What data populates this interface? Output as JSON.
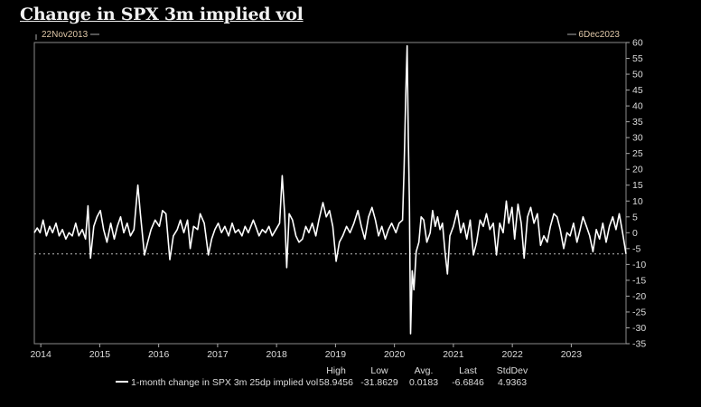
{
  "chart_data": {
    "type": "line",
    "title": "Change in SPX 3m implied vol",
    "start_label": "22Nov2013",
    "end_label": "6Dec2023",
    "ylim": [
      -35,
      60
    ],
    "y_ticks": [
      60,
      55,
      50,
      45,
      40,
      35,
      30,
      25,
      20,
      15,
      10,
      5,
      0,
      -5,
      -10,
      -15,
      -20,
      -25,
      -30,
      -35
    ],
    "x_ticks": [
      "2014",
      "2015",
      "2016",
      "2017",
      "2018",
      "2019",
      "2020",
      "2021",
      "2022",
      "2023"
    ],
    "y_axis_side": "right",
    "grid": false,
    "reference_line": {
      "value": -6.6846,
      "style": "dotted"
    },
    "series": [
      {
        "name": "1-month change in SPX 3m 25dp implied vol",
        "color": "#ffffff",
        "points": [
          [
            "2013-11-22",
            0
          ],
          [
            "2013-12-10",
            1.5
          ],
          [
            "2013-12-28",
            0
          ],
          [
            "2014-01-15",
            4
          ],
          [
            "2014-02-05",
            -1
          ],
          [
            "2014-02-25",
            2
          ],
          [
            "2014-03-15",
            0
          ],
          [
            "2014-04-05",
            3
          ],
          [
            "2014-04-25",
            -1
          ],
          [
            "2014-05-15",
            1
          ],
          [
            "2014-06-05",
            -2
          ],
          [
            "2014-06-25",
            0
          ],
          [
            "2014-07-15",
            -1
          ],
          [
            "2014-08-05",
            3
          ],
          [
            "2014-08-25",
            -1
          ],
          [
            "2014-09-15",
            1
          ],
          [
            "2014-10-05",
            -2
          ],
          [
            "2014-10-20",
            8.5
          ],
          [
            "2014-11-05",
            -8
          ],
          [
            "2014-11-25",
            2
          ],
          [
            "2014-12-15",
            5
          ],
          [
            "2015-01-05",
            7
          ],
          [
            "2015-01-25",
            1
          ],
          [
            "2015-02-15",
            -3
          ],
          [
            "2015-03-10",
            3
          ],
          [
            "2015-04-01",
            -2
          ],
          [
            "2015-04-20",
            2
          ],
          [
            "2015-05-10",
            5
          ],
          [
            "2015-05-30",
            0
          ],
          [
            "2015-06-20",
            3
          ],
          [
            "2015-07-10",
            -1
          ],
          [
            "2015-08-01",
            1
          ],
          [
            "2015-08-25",
            15
          ],
          [
            "2015-09-10",
            6
          ],
          [
            "2015-10-05",
            -7
          ],
          [
            "2015-10-25",
            -3
          ],
          [
            "2015-11-15",
            1
          ],
          [
            "2015-12-10",
            4
          ],
          [
            "2016-01-05",
            2
          ],
          [
            "2016-01-25",
            7
          ],
          [
            "2016-02-15",
            6
          ],
          [
            "2016-03-10",
            -8.5
          ],
          [
            "2016-04-01",
            -1
          ],
          [
            "2016-04-25",
            1
          ],
          [
            "2016-05-15",
            4
          ],
          [
            "2016-06-05",
            0
          ],
          [
            "2016-06-28",
            4
          ],
          [
            "2016-07-15",
            -5
          ],
          [
            "2016-08-05",
            2
          ],
          [
            "2016-08-30",
            1
          ],
          [
            "2016-09-15",
            6
          ],
          [
            "2016-10-10",
            3
          ],
          [
            "2016-11-05",
            -7
          ],
          [
            "2016-11-25",
            -2
          ],
          [
            "2016-12-15",
            1
          ],
          [
            "2017-01-05",
            3
          ],
          [
            "2017-01-25",
            0
          ],
          [
            "2017-02-15",
            2
          ],
          [
            "2017-03-10",
            -1
          ],
          [
            "2017-04-01",
            3
          ],
          [
            "2017-04-20",
            0
          ],
          [
            "2017-05-10",
            1
          ],
          [
            "2017-06-01",
            -1
          ],
          [
            "2017-06-20",
            2
          ],
          [
            "2017-07-10",
            0
          ],
          [
            "2017-08-10",
            4
          ],
          [
            "2017-08-25",
            2
          ],
          [
            "2017-09-15",
            -1
          ],
          [
            "2017-10-05",
            1
          ],
          [
            "2017-10-25",
            0
          ],
          [
            "2017-11-15",
            2
          ],
          [
            "2017-12-05",
            -1
          ],
          [
            "2017-12-28",
            1
          ],
          [
            "2018-01-20",
            3
          ],
          [
            "2018-02-05",
            18
          ],
          [
            "2018-02-20",
            6
          ],
          [
            "2018-03-05",
            -11
          ],
          [
            "2018-03-20",
            6
          ],
          [
            "2018-04-10",
            4
          ],
          [
            "2018-05-01",
            -1
          ],
          [
            "2018-05-20",
            -3
          ],
          [
            "2018-06-10",
            -2
          ],
          [
            "2018-07-01",
            2
          ],
          [
            "2018-07-20",
            0
          ],
          [
            "2018-08-10",
            3
          ],
          [
            "2018-09-01",
            -1
          ],
          [
            "2018-09-20",
            4
          ],
          [
            "2018-10-15",
            9.5
          ],
          [
            "2018-11-05",
            5
          ],
          [
            "2018-11-25",
            7
          ],
          [
            "2018-12-15",
            2
          ],
          [
            "2019-01-05",
            -9
          ],
          [
            "2019-01-25",
            -3
          ],
          [
            "2019-02-15",
            -1
          ],
          [
            "2019-03-10",
            2
          ],
          [
            "2019-04-01",
            0
          ],
          [
            "2019-04-25",
            3
          ],
          [
            "2019-05-20",
            7
          ],
          [
            "2019-06-10",
            2
          ],
          [
            "2019-07-01",
            -2
          ],
          [
            "2019-07-25",
            5
          ],
          [
            "2019-08-15",
            8
          ],
          [
            "2019-09-05",
            4
          ],
          [
            "2019-09-25",
            -1
          ],
          [
            "2019-10-15",
            2
          ],
          [
            "2019-11-05",
            -2
          ],
          [
            "2019-11-25",
            1
          ],
          [
            "2019-12-15",
            3
          ],
          [
            "2020-01-10",
            0
          ],
          [
            "2020-01-30",
            3
          ],
          [
            "2020-02-20",
            4
          ],
          [
            "2020-03-01",
            20
          ],
          [
            "2020-03-12",
            45
          ],
          [
            "2020-03-20",
            58.9456
          ],
          [
            "2020-03-27",
            30
          ],
          [
            "2020-04-03",
            10
          ],
          [
            "2020-04-10",
            -31.8629
          ],
          [
            "2020-04-20",
            -12
          ],
          [
            "2020-05-01",
            -18
          ],
          [
            "2020-05-15",
            -6
          ],
          [
            "2020-06-01",
            -3
          ],
          [
            "2020-06-15",
            5
          ],
          [
            "2020-07-01",
            4
          ],
          [
            "2020-07-20",
            -3
          ],
          [
            "2020-08-10",
            0
          ],
          [
            "2020-08-25",
            7
          ],
          [
            "2020-09-10",
            2
          ],
          [
            "2020-09-25",
            5
          ],
          [
            "2020-10-10",
            1
          ],
          [
            "2020-10-25",
            3
          ],
          [
            "2020-11-10",
            -6
          ],
          [
            "2020-11-25",
            -13
          ],
          [
            "2020-12-10",
            -1
          ],
          [
            "2021-01-01",
            2
          ],
          [
            "2021-01-25",
            7
          ],
          [
            "2021-02-15",
            0
          ],
          [
            "2021-03-05",
            3
          ],
          [
            "2021-03-25",
            -2
          ],
          [
            "2021-04-15",
            4
          ],
          [
            "2021-05-05",
            -7
          ],
          [
            "2021-05-25",
            -3
          ],
          [
            "2021-06-15",
            4
          ],
          [
            "2021-07-05",
            2
          ],
          [
            "2021-07-25",
            6
          ],
          [
            "2021-08-15",
            1
          ],
          [
            "2021-09-05",
            3
          ],
          [
            "2021-09-25",
            -7
          ],
          [
            "2021-10-15",
            3
          ],
          [
            "2021-11-05",
            0
          ],
          [
            "2021-11-25",
            10
          ],
          [
            "2021-12-10",
            3
          ],
          [
            "2021-12-30",
            8
          ],
          [
            "2022-01-15",
            -2
          ],
          [
            "2022-02-05",
            9
          ],
          [
            "2022-02-25",
            3
          ],
          [
            "2022-03-15",
            -8
          ],
          [
            "2022-04-05",
            5
          ],
          [
            "2022-04-25",
            8
          ],
          [
            "2022-05-15",
            3
          ],
          [
            "2022-06-05",
            6
          ],
          [
            "2022-06-25",
            -4
          ],
          [
            "2022-07-15",
            -1
          ],
          [
            "2022-08-05",
            -3
          ],
          [
            "2022-08-25",
            2
          ],
          [
            "2022-09-15",
            6
          ],
          [
            "2022-10-05",
            5
          ],
          [
            "2022-10-25",
            1
          ],
          [
            "2022-11-15",
            -5
          ],
          [
            "2022-12-05",
            0
          ],
          [
            "2022-12-25",
            -1
          ],
          [
            "2023-01-15",
            3
          ],
          [
            "2023-02-05",
            -3
          ],
          [
            "2023-02-25",
            1
          ],
          [
            "2023-03-15",
            5
          ],
          [
            "2023-04-05",
            2
          ],
          [
            "2023-04-25",
            -1
          ],
          [
            "2023-05-15",
            -6
          ],
          [
            "2023-06-05",
            1
          ],
          [
            "2023-06-25",
            -2
          ],
          [
            "2023-07-15",
            3
          ],
          [
            "2023-08-05",
            -3
          ],
          [
            "2023-08-25",
            2
          ],
          [
            "2023-09-15",
            5
          ],
          [
            "2023-10-05",
            1
          ],
          [
            "2023-10-25",
            6
          ],
          [
            "2023-11-15",
            0
          ],
          [
            "2023-12-06",
            -6.6846
          ]
        ]
      }
    ],
    "legend": {
      "placement": "bottom",
      "label": "1-month change in SPX 3m 25dp implied vol",
      "stats_headers": [
        "High",
        "Low",
        "Avg.",
        "Last",
        "StdDev"
      ],
      "stats_values": [
        "58.9456",
        "-31.8629",
        "0.0183",
        "-6.6846",
        "4.9363"
      ]
    }
  }
}
